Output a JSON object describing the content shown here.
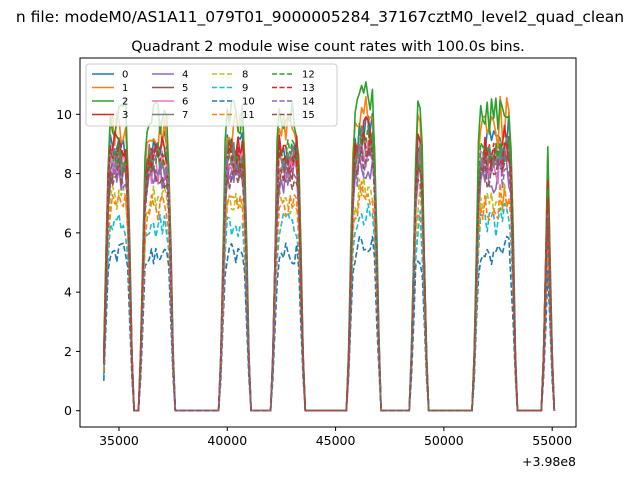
{
  "suptitle": "n file: modeM0/AS1A11_079T01_9000005284_37167cztM0_level2_quad_clean",
  "chart_data": {
    "type": "line",
    "title": "Quadrant 2 module wise count rates with 100.0s bins.",
    "xlabel": "",
    "ylabel": "",
    "x_offset_label": "+3.98e8",
    "xlim": [
      33200,
      56100
    ],
    "ylim": [
      -0.55,
      11.9
    ],
    "xticks": [
      35000,
      40000,
      45000,
      50000,
      55000
    ],
    "xtick_labels": [
      "35000",
      "40000",
      "45000",
      "50000",
      "55000"
    ],
    "yticks": [
      0,
      2,
      4,
      6,
      8,
      10
    ],
    "ytick_labels": [
      "0",
      "2",
      "4",
      "6",
      "8",
      "10"
    ],
    "grid": false,
    "legend_position": "upper-left",
    "legend_columns": 4,
    "segments": [
      {
        "start": 34300,
        "end": 35600
      },
      {
        "start": 36000,
        "end": 37500
      },
      {
        "start": 39700,
        "end": 41000
      },
      {
        "start": 42100,
        "end": 43500
      },
      {
        "start": 45600,
        "end": 47000
      },
      {
        "start": 48500,
        "end": 49200
      },
      {
        "start": 51400,
        "end": 53300
      },
      {
        "start": 54600,
        "end": 55000
      }
    ],
    "series": [
      {
        "name": "0",
        "color": "#1f77b4",
        "dash": "solid",
        "level": 8.9
      },
      {
        "name": "1",
        "color": "#ff7f0e",
        "dash": "solid",
        "level": 9.5
      },
      {
        "name": "2",
        "color": "#2ca02c",
        "dash": "solid",
        "level": 9.9
      },
      {
        "name": "3",
        "color": "#d62728",
        "dash": "solid",
        "level": 8.8
      },
      {
        "name": "4",
        "color": "#9467bd",
        "dash": "solid",
        "level": 7.9
      },
      {
        "name": "5",
        "color": "#8c564b",
        "dash": "solid",
        "level": 8.3
      },
      {
        "name": "6",
        "color": "#e377c2",
        "dash": "solid",
        "level": 8.2
      },
      {
        "name": "7",
        "color": "#7f7f7f",
        "dash": "solid",
        "level": 8.5
      },
      {
        "name": "8",
        "color": "#bcbd22",
        "dash": "dashed",
        "level": 7.1
      },
      {
        "name": "9",
        "color": "#17becf",
        "dash": "dashed",
        "level": 6.3
      },
      {
        "name": "10",
        "color": "#1f77b4",
        "dash": "dashed",
        "level": 5.3
      },
      {
        "name": "11",
        "color": "#ff7f0e",
        "dash": "dashed",
        "level": 6.9
      },
      {
        "name": "12",
        "color": "#2ca02c",
        "dash": "dashed",
        "level": 8.7
      },
      {
        "name": "13",
        "color": "#d62728",
        "dash": "dashed",
        "level": 8.5
      },
      {
        "name": "14",
        "color": "#9467bd",
        "dash": "dashed",
        "level": 8.0
      },
      {
        "name": "15",
        "color": "#8c564b",
        "dash": "dashed",
        "level": 8.0
      }
    ]
  }
}
